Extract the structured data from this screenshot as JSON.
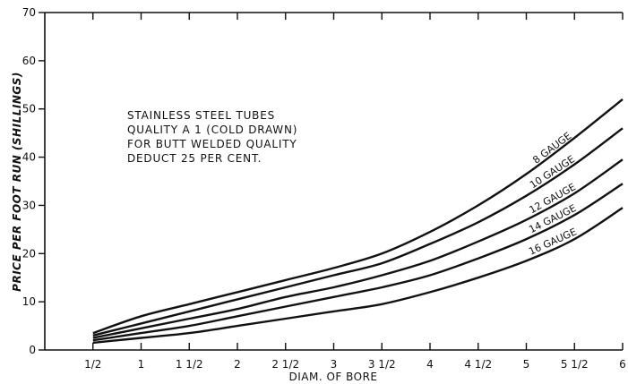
{
  "chart_data": {
    "type": "line",
    "xlabel": "DIAM. OF BORE",
    "ylabel": "PRICE PER FOOT RUN (SHILLINGS)",
    "xlim": [
      0,
      6
    ],
    "ylim": [
      0,
      70
    ],
    "x_ticks": [
      {
        "value": 0.5,
        "label": "1/2"
      },
      {
        "value": 1,
        "label": "1"
      },
      {
        "value": 1.5,
        "label": "1 1/2"
      },
      {
        "value": 2,
        "label": "2"
      },
      {
        "value": 2.5,
        "label": "2 1/2"
      },
      {
        "value": 3,
        "label": "3"
      },
      {
        "value": 3.5,
        "label": "3 1/2"
      },
      {
        "value": 4,
        "label": "4"
      },
      {
        "value": 4.5,
        "label": "4 1/2"
      },
      {
        "value": 5,
        "label": "5"
      },
      {
        "value": 5.5,
        "label": "5 1/2"
      },
      {
        "value": 6,
        "label": "6"
      }
    ],
    "y_ticks": [
      0,
      10,
      20,
      30,
      40,
      50,
      60,
      70
    ],
    "grid": false,
    "annotation": [
      "STAINLESS  STEEL  TUBES",
      "QUALITY  A 1 (COLD DRAWN)",
      "FOR BUTT WELDED QUALITY",
      "DEDUCT  25  PER CENT."
    ],
    "x": [
      0.5,
      1,
      1.5,
      2,
      2.5,
      3,
      3.5,
      4,
      4.5,
      5,
      5.5,
      6
    ],
    "series": [
      {
        "name": "8 GAUGE",
        "values": [
          3.5,
          7,
          9.5,
          12,
          14.5,
          17,
          20,
          24.5,
          30,
          36.5,
          44,
          52
        ]
      },
      {
        "name": "10 GAUGE",
        "values": [
          3,
          5.5,
          8,
          10.5,
          13,
          15.5,
          18,
          22,
          26.5,
          32,
          38.5,
          46
        ]
      },
      {
        "name": "12 GAUGE",
        "values": [
          2.5,
          4.5,
          6.5,
          8.5,
          11,
          13,
          15.5,
          18.5,
          22.5,
          27,
          32.5,
          39.5
        ]
      },
      {
        "name": "14 GAUGE",
        "values": [
          2,
          3.5,
          5,
          7,
          9,
          11,
          13,
          15.5,
          19,
          23,
          28,
          34.5
        ]
      },
      {
        "name": "16 GAUGE",
        "values": [
          1.5,
          2.5,
          3.5,
          5,
          6.5,
          8,
          9.5,
          12,
          15,
          18.5,
          23,
          29.5
        ]
      }
    ]
  }
}
